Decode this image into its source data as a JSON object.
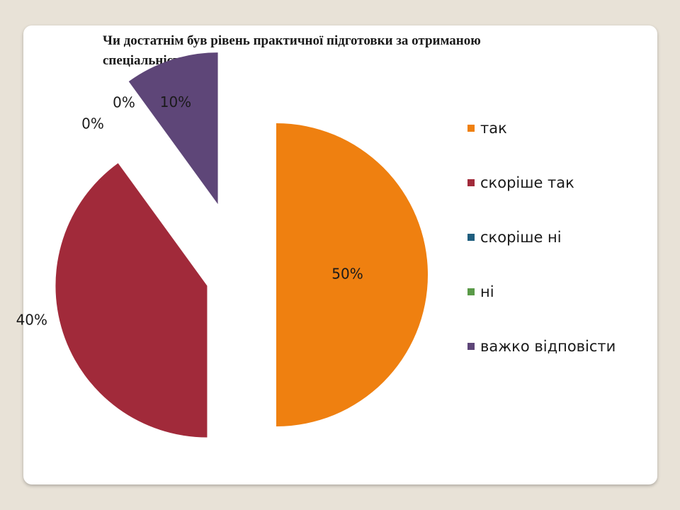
{
  "title": "Чи достатнім  був рівень практичної підготовки за отриманою спеціальністю?",
  "chart_data": {
    "type": "pie",
    "title": "Чи достатнім  був рівень практичної підготовки за отриманою спеціальністю?",
    "exploded": true,
    "start_angle": "12 o'clock, clockwise",
    "legend_position": "right",
    "slices": [
      {
        "label": "так",
        "value": 50,
        "data_label": "50%",
        "color": "#ef8010"
      },
      {
        "label": "скоріше так",
        "value": 40,
        "data_label": "40%",
        "color": "#a12a3a"
      },
      {
        "label": "скоріше ні",
        "value": 0,
        "data_label": "0%",
        "color": "#1f5e7e"
      },
      {
        "label": "ні",
        "value": 0,
        "data_label": "0%",
        "color": "#5a9a48"
      },
      {
        "label": "важко відповісти",
        "value": 10,
        "data_label": "10%",
        "color": "#5e4678"
      }
    ]
  }
}
